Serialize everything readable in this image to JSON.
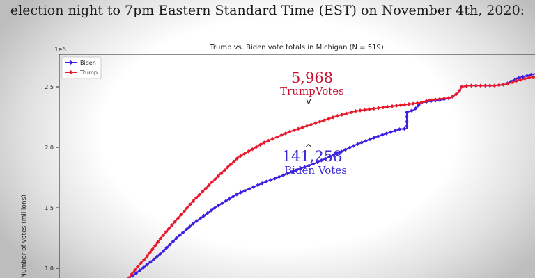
{
  "header_text": "election night to 7pm Eastern Standard Time (EST) on November 4th, 2020:",
  "chart_data": {
    "type": "line",
    "title": "Trump vs. Biden vote totals in Michigan (N = 519)",
    "ylabel": "Number of votes (millions)",
    "y_scale_label": "1e6",
    "ylim": [
      0.92,
      2.77
    ],
    "yticks": [
      "1.0",
      "1.5",
      "2.0",
      "2.5"
    ],
    "grid": false,
    "legend_position": "top-left",
    "series": [
      {
        "name": "Biden",
        "color": "#3c1fe0",
        "points": [
          [
            0.0,
            0.92
          ],
          [
            0.02,
            0.96
          ],
          [
            0.05,
            1.03
          ],
          [
            0.09,
            1.13
          ],
          [
            0.13,
            1.25
          ],
          [
            0.18,
            1.38
          ],
          [
            0.24,
            1.51
          ],
          [
            0.3,
            1.62
          ],
          [
            0.37,
            1.71
          ],
          [
            0.44,
            1.79
          ],
          [
            0.51,
            1.87
          ],
          [
            0.57,
            1.95
          ],
          [
            0.62,
            2.02
          ],
          [
            0.67,
            2.08
          ],
          [
            0.71,
            2.12
          ],
          [
            0.74,
            2.15
          ],
          [
            0.76,
            2.155
          ],
          [
            0.76,
            2.29
          ],
          [
            0.78,
            2.31
          ],
          [
            0.8,
            2.37
          ],
          [
            0.82,
            2.38
          ],
          [
            0.85,
            2.39
          ],
          [
            0.88,
            2.41
          ],
          [
            0.9,
            2.45
          ],
          [
            0.91,
            2.5
          ],
          [
            0.93,
            2.51
          ],
          [
            1.0,
            2.51
          ],
          [
            1.03,
            2.52
          ],
          [
            1.06,
            2.57
          ],
          [
            1.1,
            2.6
          ],
          [
            1.13,
            2.62
          ],
          [
            1.15,
            2.63
          ],
          [
            1.18,
            2.64
          ],
          [
            1.23,
            2.65
          ],
          [
            1.28,
            2.67
          ],
          [
            1.31,
            2.685
          ],
          [
            1.34,
            2.69
          ]
        ]
      },
      {
        "name": "Trump",
        "color": "#e8192c",
        "points": [
          [
            0.0,
            0.92
          ],
          [
            0.02,
            1.0
          ],
          [
            0.05,
            1.1
          ],
          [
            0.09,
            1.26
          ],
          [
            0.13,
            1.4
          ],
          [
            0.18,
            1.57
          ],
          [
            0.24,
            1.75
          ],
          [
            0.3,
            1.92
          ],
          [
            0.37,
            2.04
          ],
          [
            0.44,
            2.13
          ],
          [
            0.51,
            2.2
          ],
          [
            0.57,
            2.26
          ],
          [
            0.62,
            2.3
          ],
          [
            0.67,
            2.32
          ],
          [
            0.72,
            2.34
          ],
          [
            0.76,
            2.355
          ],
          [
            0.8,
            2.37
          ],
          [
            0.82,
            2.39
          ],
          [
            0.85,
            2.4
          ],
          [
            0.88,
            2.41
          ],
          [
            0.9,
            2.45
          ],
          [
            0.91,
            2.5
          ],
          [
            0.93,
            2.51
          ],
          [
            1.0,
            2.51
          ],
          [
            1.03,
            2.52
          ],
          [
            1.06,
            2.55
          ],
          [
            1.1,
            2.58
          ],
          [
            1.13,
            2.58
          ],
          [
            1.18,
            2.59
          ],
          [
            1.23,
            2.6
          ],
          [
            1.28,
            2.61
          ],
          [
            1.31,
            2.62
          ],
          [
            1.34,
            2.63
          ]
        ]
      }
    ],
    "annotations": [
      {
        "value": "5,968",
        "label": "TrumpVotes",
        "color": "#c8102e",
        "marker": "v"
      },
      {
        "value": "141,258",
        "label": "Biden Votes",
        "color": "#3a2ad8",
        "marker": "^"
      }
    ]
  }
}
